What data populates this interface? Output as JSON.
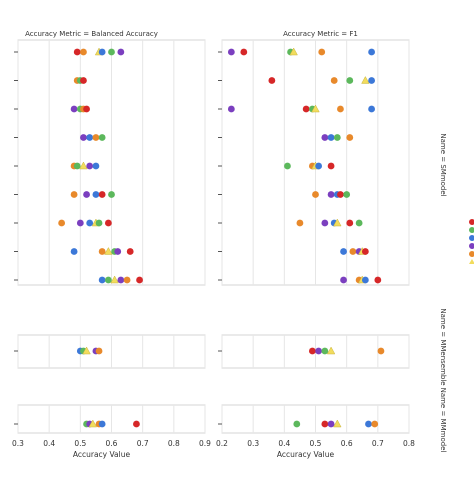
{
  "chart_data": {
    "type": "scatter",
    "x_label": "Accuracy Value",
    "column_titles": [
      "Accuracy Metric = Balanced Accuracy",
      "Accuracy Metric = F1"
    ],
    "row_labels": [
      "Name = SMmodel",
      "Name = MMensemble",
      "Name = MMmodel"
    ],
    "x_ticks": [
      "0.3",
      "0.4",
      "0.5",
      "0.6",
      "0.7",
      "0.8",
      "0.9"
    ],
    "x_ticks_right": [
      "0.2",
      "0.3",
      "0.4",
      "0.5",
      "0.6",
      "0.7",
      "0.8"
    ],
    "xlim_left": [
      0.3,
      0.9
    ],
    "xlim_right": [
      0.2,
      0.8
    ],
    "grid": true,
    "series_colors": {
      "red": "#d62728",
      "orange": "#e8892b",
      "green": "#5cb85c",
      "purple": "#7b3fbf",
      "blue": "#3c78d8",
      "yellow": "#f2dc5d"
    },
    "panels": [
      {
        "column": 0,
        "row": 0,
        "rows": [
          [
            {
              "x": 0.49,
              "c": "red"
            },
            {
              "x": 0.51,
              "c": "orange"
            },
            {
              "x": 0.56,
              "c": "yellow"
            },
            {
              "x": 0.57,
              "c": "blue"
            },
            {
              "x": 0.6,
              "c": "green"
            },
            {
              "x": 0.63,
              "c": "purple"
            }
          ],
          [
            {
              "x": 0.49,
              "c": "orange"
            },
            {
              "x": 0.5,
              "c": "green"
            },
            {
              "x": 0.51,
              "c": "red"
            }
          ],
          [
            {
              "x": 0.48,
              "c": "purple"
            },
            {
              "x": 0.5,
              "c": "green"
            },
            {
              "x": 0.51,
              "c": "orange"
            },
            {
              "x": 0.52,
              "c": "red"
            }
          ],
          [
            {
              "x": 0.51,
              "c": "purple"
            },
            {
              "x": 0.53,
              "c": "blue"
            },
            {
              "x": 0.55,
              "c": "orange"
            },
            {
              "x": 0.57,
              "c": "green"
            }
          ],
          [
            {
              "x": 0.48,
              "c": "orange"
            },
            {
              "x": 0.49,
              "c": "green"
            },
            {
              "x": 0.51,
              "c": "yellow"
            },
            {
              "x": 0.53,
              "c": "purple"
            },
            {
              "x": 0.55,
              "c": "blue"
            }
          ],
          [
            {
              "x": 0.48,
              "c": "orange"
            },
            {
              "x": 0.52,
              "c": "purple"
            },
            {
              "x": 0.55,
              "c": "blue"
            },
            {
              "x": 0.57,
              "c": "red"
            },
            {
              "x": 0.6,
              "c": "green"
            }
          ],
          [
            {
              "x": 0.44,
              "c": "orange"
            },
            {
              "x": 0.5,
              "c": "purple"
            },
            {
              "x": 0.53,
              "c": "blue"
            },
            {
              "x": 0.55,
              "c": "yellow"
            },
            {
              "x": 0.56,
              "c": "green"
            },
            {
              "x": 0.59,
              "c": "red"
            }
          ],
          [
            {
              "x": 0.48,
              "c": "blue"
            },
            {
              "x": 0.57,
              "c": "orange"
            },
            {
              "x": 0.59,
              "c": "yellow"
            },
            {
              "x": 0.61,
              "c": "green"
            },
            {
              "x": 0.62,
              "c": "purple"
            },
            {
              "x": 0.66,
              "c": "red"
            }
          ],
          [
            {
              "x": 0.57,
              "c": "blue"
            },
            {
              "x": 0.59,
              "c": "green"
            },
            {
              "x": 0.61,
              "c": "yellow"
            },
            {
              "x": 0.63,
              "c": "purple"
            },
            {
              "x": 0.65,
              "c": "orange"
            },
            {
              "x": 0.69,
              "c": "red"
            }
          ]
        ]
      },
      {
        "column": 1,
        "row": 0,
        "rows": [
          [
            {
              "x": 0.23,
              "c": "purple"
            },
            {
              "x": 0.27,
              "c": "red"
            },
            {
              "x": 0.42,
              "c": "green"
            },
            {
              "x": 0.43,
              "c": "yellow"
            },
            {
              "x": 0.52,
              "c": "orange"
            },
            {
              "x": 0.68,
              "c": "blue"
            }
          ],
          [
            {
              "x": 0.36,
              "c": "red"
            },
            {
              "x": 0.56,
              "c": "orange"
            },
            {
              "x": 0.61,
              "c": "green"
            },
            {
              "x": 0.66,
              "c": "yellow"
            },
            {
              "x": 0.68,
              "c": "blue"
            }
          ],
          [
            {
              "x": 0.23,
              "c": "purple"
            },
            {
              "x": 0.47,
              "c": "red"
            },
            {
              "x": 0.49,
              "c": "green"
            },
            {
              "x": 0.5,
              "c": "yellow"
            },
            {
              "x": 0.58,
              "c": "orange"
            },
            {
              "x": 0.68,
              "c": "blue"
            }
          ],
          [
            {
              "x": 0.53,
              "c": "purple"
            },
            {
              "x": 0.55,
              "c": "blue"
            },
            {
              "x": 0.57,
              "c": "green"
            },
            {
              "x": 0.61,
              "c": "orange"
            }
          ],
          [
            {
              "x": 0.41,
              "c": "green"
            },
            {
              "x": 0.49,
              "c": "orange"
            },
            {
              "x": 0.5,
              "c": "yellow"
            },
            {
              "x": 0.51,
              "c": "blue"
            },
            {
              "x": 0.55,
              "c": "red"
            }
          ],
          [
            {
              "x": 0.5,
              "c": "orange"
            },
            {
              "x": 0.55,
              "c": "purple"
            },
            {
              "x": 0.57,
              "c": "blue"
            },
            {
              "x": 0.58,
              "c": "red"
            },
            {
              "x": 0.6,
              "c": "green"
            }
          ],
          [
            {
              "x": 0.45,
              "c": "orange"
            },
            {
              "x": 0.53,
              "c": "purple"
            },
            {
              "x": 0.56,
              "c": "blue"
            },
            {
              "x": 0.57,
              "c": "yellow"
            },
            {
              "x": 0.61,
              "c": "red"
            },
            {
              "x": 0.64,
              "c": "green"
            }
          ],
          [
            {
              "x": 0.59,
              "c": "blue"
            },
            {
              "x": 0.62,
              "c": "orange"
            },
            {
              "x": 0.64,
              "c": "purple"
            },
            {
              "x": 0.65,
              "c": "yellow"
            },
            {
              "x": 0.66,
              "c": "red"
            }
          ],
          [
            {
              "x": 0.59,
              "c": "purple"
            },
            {
              "x": 0.64,
              "c": "orange"
            },
            {
              "x": 0.65,
              "c": "yellow"
            },
            {
              "x": 0.66,
              "c": "blue"
            },
            {
              "x": 0.7,
              "c": "red"
            }
          ]
        ]
      },
      {
        "column": 0,
        "row": 1,
        "rows": [
          [
            {
              "x": 0.5,
              "c": "blue"
            },
            {
              "x": 0.51,
              "c": "green"
            },
            {
              "x": 0.52,
              "c": "yellow"
            },
            {
              "x": 0.55,
              "c": "purple"
            },
            {
              "x": 0.56,
              "c": "orange"
            }
          ]
        ]
      },
      {
        "column": 1,
        "row": 1,
        "rows": [
          [
            {
              "x": 0.49,
              "c": "red"
            },
            {
              "x": 0.51,
              "c": "purple"
            },
            {
              "x": 0.53,
              "c": "green"
            },
            {
              "x": 0.55,
              "c": "yellow"
            },
            {
              "x": 0.71,
              "c": "orange"
            }
          ]
        ]
      },
      {
        "column": 0,
        "row": 2,
        "rows": [
          [
            {
              "x": 0.52,
              "c": "green"
            },
            {
              "x": 0.53,
              "c": "purple"
            },
            {
              "x": 0.54,
              "c": "yellow"
            },
            {
              "x": 0.56,
              "c": "orange"
            },
            {
              "x": 0.57,
              "c": "blue"
            },
            {
              "x": 0.68,
              "c": "red"
            }
          ]
        ]
      },
      {
        "column": 1,
        "row": 2,
        "rows": [
          [
            {
              "x": 0.44,
              "c": "green"
            },
            {
              "x": 0.53,
              "c": "red"
            },
            {
              "x": 0.55,
              "c": "purple"
            },
            {
              "x": 0.57,
              "c": "yellow"
            },
            {
              "x": 0.67,
              "c": "blue"
            },
            {
              "x": 0.69,
              "c": "orange"
            }
          ]
        ]
      }
    ],
    "legend_swatches": [
      "red",
      "green",
      "blue",
      "purple",
      "orange",
      "yellow"
    ]
  }
}
